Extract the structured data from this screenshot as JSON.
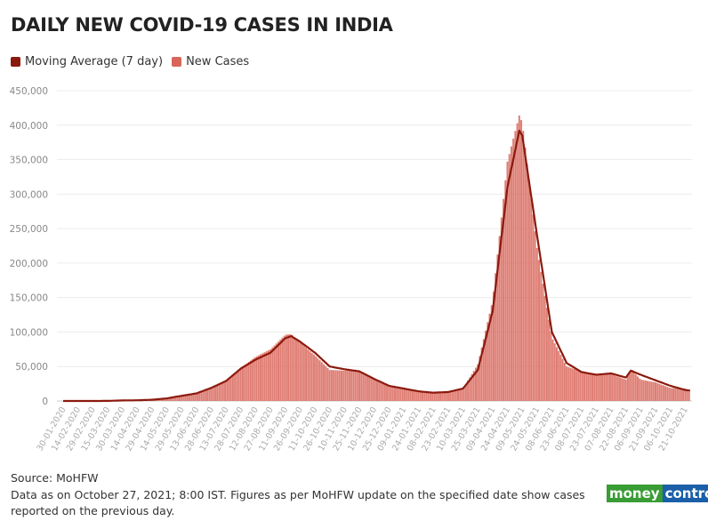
{
  "chart_data": {
    "type": "bar",
    "title": "DAILY NEW COVID-19 CASES IN INDIA",
    "legend": [
      {
        "name": "Moving Average (7 day)",
        "color": "#8b1a0e"
      },
      {
        "name": "New Cases",
        "color": "#d9665a"
      }
    ],
    "legend_position": "top-left",
    "ylim": [
      0,
      450000
    ],
    "yticks": [
      0,
      50000,
      100000,
      150000,
      200000,
      250000,
      300000,
      350000,
      400000,
      450000
    ],
    "ytick_labels": [
      "0",
      "50,000",
      "100,000",
      "150,000",
      "200,000",
      "250,000",
      "300,000",
      "350,000",
      "400,000",
      "450,000"
    ],
    "xtick_labels": [
      "30-01-2020",
      "14-02-2020",
      "29-02-2020",
      "15-03-2020",
      "30-03-2020",
      "14-04-2020",
      "29-04-2020",
      "14-05-2020",
      "29-05-2020",
      "13-06-2020",
      "28-06-2020",
      "13-07-2020",
      "28-07-2020",
      "12-08-2020",
      "27-08-2020",
      "11-09-2020",
      "26-09-2020",
      "11-10-2020",
      "26-10-2020",
      "10-11-2020",
      "25-11-2020",
      "10-12-2020",
      "25-12-2020",
      "09-01-2021",
      "24-01-2021",
      "08-02-2021",
      "23-02-2021",
      "10-03-2021",
      "25-03-2021",
      "09-04-2021",
      "24-04-2021",
      "09-05-2021",
      "24-05-2021",
      "08-06-2021",
      "23-06-2021",
      "08-07-2021",
      "23-07-2021",
      "07-08-2021",
      "22-08-2021",
      "06-09-2021",
      "21-09-2021",
      "06-10-2021",
      "21-10-2021"
    ],
    "grid": true,
    "series": [
      {
        "name": "Moving Average (7 day)",
        "type": "line",
        "points": [
          [
            "30-01-2020",
            0
          ],
          [
            "14-02-2020",
            0
          ],
          [
            "29-02-2020",
            0
          ],
          [
            "15-03-2020",
            100
          ],
          [
            "30-03-2020",
            800
          ],
          [
            "14-04-2020",
            1000
          ],
          [
            "29-04-2020",
            1800
          ],
          [
            "14-05-2020",
            3800
          ],
          [
            "29-05-2020",
            7500
          ],
          [
            "13-06-2020",
            11000
          ],
          [
            "28-06-2020",
            19000
          ],
          [
            "13-07-2020",
            29000
          ],
          [
            "28-07-2020",
            47000
          ],
          [
            "12-08-2020",
            60000
          ],
          [
            "27-08-2020",
            70000
          ],
          [
            "11-09-2020",
            91000
          ],
          [
            "17-09-2020",
            94000
          ],
          [
            "26-09-2020",
            86000
          ],
          [
            "11-10-2020",
            70000
          ],
          [
            "26-10-2020",
            50000
          ],
          [
            "10-11-2020",
            46000
          ],
          [
            "25-11-2020",
            43000
          ],
          [
            "10-12-2020",
            32000
          ],
          [
            "25-12-2020",
            22000
          ],
          [
            "09-01-2021",
            18000
          ],
          [
            "24-01-2021",
            14000
          ],
          [
            "08-02-2021",
            12000
          ],
          [
            "23-02-2021",
            13000
          ],
          [
            "10-03-2021",
            18000
          ],
          [
            "25-03-2021",
            45000
          ],
          [
            "09-04-2021",
            130000
          ],
          [
            "24-04-2021",
            310000
          ],
          [
            "06-05-2021",
            392000
          ],
          [
            "09-05-2021",
            385000
          ],
          [
            "24-05-2021",
            240000
          ],
          [
            "08-06-2021",
            100000
          ],
          [
            "23-06-2021",
            55000
          ],
          [
            "08-07-2021",
            42000
          ],
          [
            "23-07-2021",
            38000
          ],
          [
            "07-08-2021",
            40000
          ],
          [
            "22-08-2021",
            34000
          ],
          [
            "27-08-2021",
            44000
          ],
          [
            "06-09-2021",
            38000
          ],
          [
            "21-09-2021",
            30000
          ],
          [
            "06-10-2021",
            22000
          ],
          [
            "21-10-2021",
            16000
          ],
          [
            "26-10-2021",
            15000
          ]
        ]
      },
      {
        "name": "New Cases",
        "type": "bar",
        "points": [
          [
            "30-01-2020",
            0
          ],
          [
            "29-02-2020",
            0
          ],
          [
            "15-03-2020",
            100
          ],
          [
            "30-03-2020",
            900
          ],
          [
            "14-04-2020",
            1100
          ],
          [
            "29-04-2020",
            1900
          ],
          [
            "14-05-2020",
            3900
          ],
          [
            "29-05-2020",
            7900
          ],
          [
            "13-06-2020",
            11500
          ],
          [
            "28-06-2020",
            19500
          ],
          [
            "13-07-2020",
            29000
          ],
          [
            "28-07-2020",
            48000
          ],
          [
            "12-08-2020",
            64000
          ],
          [
            "27-08-2020",
            75000
          ],
          [
            "11-09-2020",
            96000
          ],
          [
            "17-09-2020",
            97000
          ],
          [
            "26-09-2020",
            85000
          ],
          [
            "11-10-2020",
            66000
          ],
          [
            "26-10-2020",
            45000
          ],
          [
            "10-11-2020",
            44000
          ],
          [
            "25-11-2020",
            44000
          ],
          [
            "10-12-2020",
            31000
          ],
          [
            "25-12-2020",
            23000
          ],
          [
            "09-01-2021",
            18000
          ],
          [
            "24-01-2021",
            13000
          ],
          [
            "08-02-2021",
            11000
          ],
          [
            "23-02-2021",
            13700
          ],
          [
            "10-03-2021",
            17900
          ],
          [
            "25-03-2021",
            53000
          ],
          [
            "09-04-2021",
            145000
          ],
          [
            "24-04-2021",
            347000
          ],
          [
            "06-05-2021",
            414000
          ],
          [
            "09-05-2021",
            404000
          ],
          [
            "24-05-2021",
            222000
          ],
          [
            "08-06-2021",
            92000
          ],
          [
            "23-06-2021",
            50000
          ],
          [
            "08-07-2021",
            43000
          ],
          [
            "23-07-2021",
            39000
          ],
          [
            "07-08-2021",
            39000
          ],
          [
            "22-08-2021",
            31000
          ],
          [
            "27-08-2021",
            46000
          ],
          [
            "06-09-2021",
            31000
          ],
          [
            "21-09-2021",
            27000
          ],
          [
            "06-10-2021",
            18800
          ],
          [
            "21-10-2021",
            18000
          ],
          [
            "26-10-2021",
            12400
          ]
        ]
      }
    ]
  },
  "footer": {
    "source": "Source: MoHFW",
    "note_line1": "Data as on October 27, 2021; 8:00 IST. Figures as per MoHFW update on the specified date show cases",
    "note_line2": "reported on the previous day.",
    "logo_left": "money",
    "logo_right": "control"
  }
}
